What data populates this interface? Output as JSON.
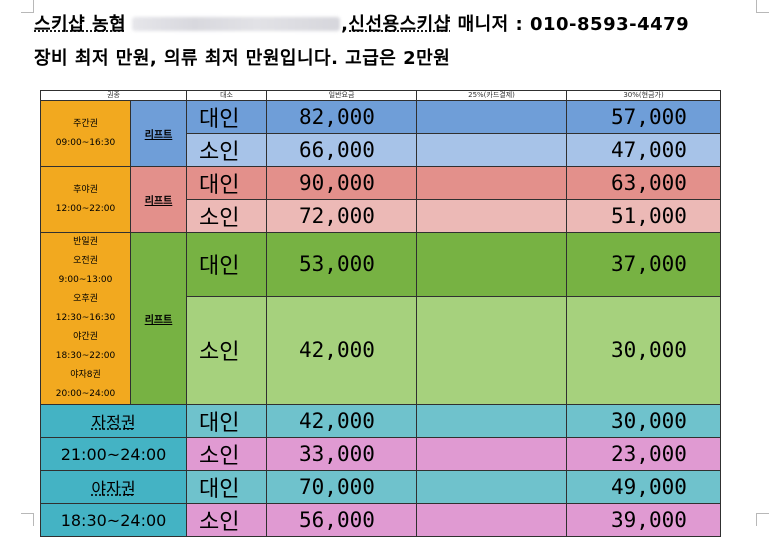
{
  "header": {
    "line1_prefix": "스키샵 농협",
    "line1_suffix": ",신선용스키샵",
    "line1_manager": "매니저 : 010-8593-4479",
    "line2": "장비 최저 만원, 의류 최저 만원입니다. 고급은 2만원"
  },
  "table": {
    "headers": {
      "ticket": "권종",
      "size": "대소",
      "regular": "일반요금",
      "card": "25%(카드결제)",
      "cash": "30%(현금가)"
    },
    "lift_label": "리프트",
    "day_pass": {
      "name": "주간권",
      "time": "09:00~16:30",
      "adult": {
        "size": "대인",
        "regular": "82,000",
        "card": "",
        "cash": "57,000"
      },
      "child": {
        "size": "소인",
        "regular": "66,000",
        "card": "",
        "cash": "47,000"
      }
    },
    "evening_pass": {
      "name": "후야권",
      "time": "12:00~22:00",
      "adult": {
        "size": "대인",
        "regular": "90,000",
        "card": "",
        "cash": "63,000"
      },
      "child": {
        "size": "소인",
        "regular": "72,000",
        "card": "",
        "cash": "51,000"
      }
    },
    "half_pass": {
      "lines": [
        "반일권",
        "오전권",
        "9:00~13:00",
        "오후권",
        "12:30~16:30",
        "야간권",
        "18:30~22:00",
        "야자8권",
        "20:00~24:00"
      ],
      "adult": {
        "size": "대인",
        "regular": "53,000",
        "card": "",
        "cash": "37,000"
      },
      "child": {
        "size": "소인",
        "regular": "42,000",
        "card": "",
        "cash": "30,000"
      }
    },
    "midnight_pass": {
      "name": "자정권",
      "time": "21:00~24:00",
      "adult": {
        "size": "대인",
        "regular": "42,000",
        "card": "",
        "cash": "30,000"
      },
      "child": {
        "size": "소인",
        "regular": "33,000",
        "card": "",
        "cash": "23,000"
      }
    },
    "night_pass": {
      "name": "야자권",
      "time": "18:30~24:00",
      "adult": {
        "size": "대인",
        "regular": "70,000",
        "card": "",
        "cash": "49,000"
      },
      "child": {
        "size": "소인",
        "regular": "56,000",
        "card": "",
        "cash": "39,000"
      }
    }
  },
  "colors": {
    "orange": "#f2a91f",
    "blue": "#6f9ed8",
    "blue_light": "#a7c3e8",
    "red": "#e3908b",
    "red_light": "#ecb9b6",
    "green": "#77b243",
    "green_light": "#a6d17d",
    "teal": "#44b3c4",
    "teal_light": "#6fc2cc",
    "pink": "#e09ad2"
  }
}
